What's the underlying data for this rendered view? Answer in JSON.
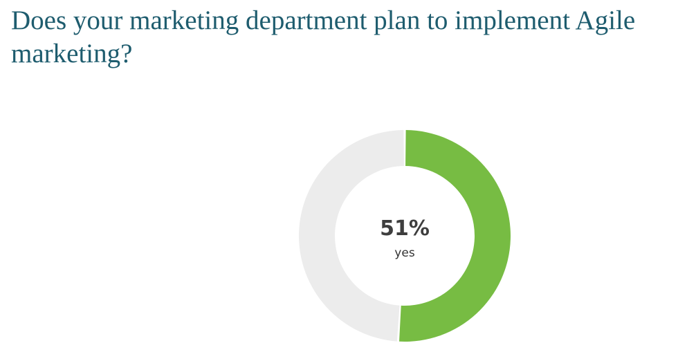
{
  "title": "Does your marketing department plan to implement Agile marketing?",
  "chart_data": {
    "type": "pie",
    "categories": [
      "yes",
      ""
    ],
    "values": [
      51,
      49
    ],
    "center_value": "51%",
    "center_label": "yes",
    "colors": [
      "#77bc43",
      "#ececec"
    ]
  }
}
